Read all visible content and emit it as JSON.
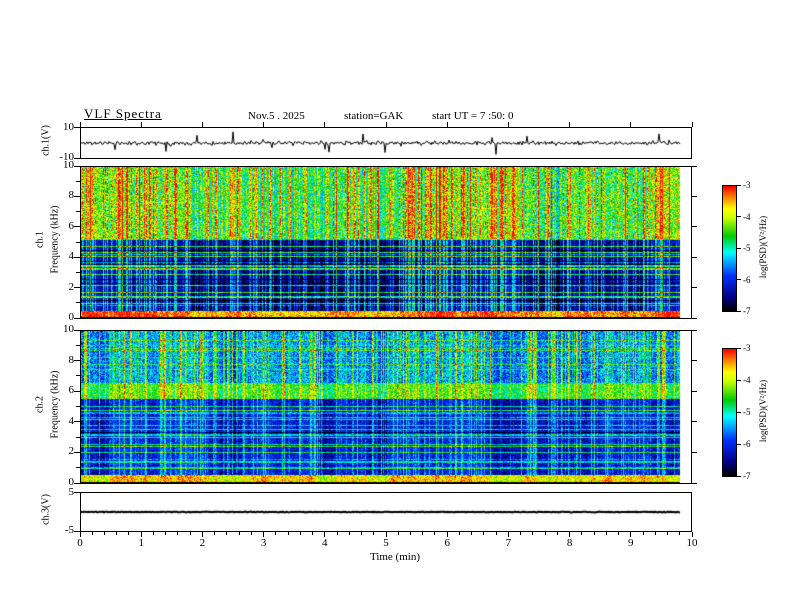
{
  "header": {
    "title": "VLF  Spectra",
    "date": "Nov.5  . 2025",
    "station": "station=GAK",
    "start_ut": "start UT =  7 :50: 0"
  },
  "x_axis": {
    "label": "Time  (min)",
    "ticks": [
      "0",
      "1",
      "2",
      "3",
      "4",
      "5",
      "6",
      "7",
      "8",
      "9",
      "10"
    ],
    "range": [
      0,
      10
    ],
    "minor_per_major": 5
  },
  "panels": {
    "wave1": {
      "ylabel": "ch.1(V)",
      "ytick_top": "10",
      "ytick_bottom": "-10"
    },
    "spec1": {
      "ylabel_line1": "ch.1",
      "ylabel_line2": "Frequency  (kHz)",
      "yticks": [
        "0",
        "2",
        "4",
        "6",
        "8",
        "10"
      ]
    },
    "spec2": {
      "ylabel_line1": "ch.2",
      "ylabel_line2": "Frequency  (kHz)",
      "yticks": [
        "0",
        "2",
        "4",
        "6",
        "8",
        "10"
      ]
    },
    "wave3": {
      "ylabel": "ch.3(V)",
      "ytick_top": "5",
      "ytick_bottom": "-5"
    }
  },
  "colorbar": {
    "label": "log(PSD)(V²/Hz)",
    "ticks": [
      "-3",
      "-4",
      "-5",
      "-6",
      "-7"
    ],
    "range": [
      -7,
      -3
    ],
    "stops": [
      [
        0,
        "#000000"
      ],
      [
        0.1,
        "#000080"
      ],
      [
        0.28,
        "#0030ff"
      ],
      [
        0.47,
        "#00ffff"
      ],
      [
        0.6,
        "#00cc00"
      ],
      [
        0.75,
        "#ccff00"
      ],
      [
        0.82,
        "#ffff00"
      ],
      [
        0.92,
        "#ff7700"
      ],
      [
        1,
        "#ff0000"
      ]
    ]
  },
  "chart_data": [
    {
      "type": "line",
      "name": "ch.1 voltage waveform",
      "ylabel": "ch.1(V)",
      "ylim": [
        -10,
        10
      ],
      "xlim": [
        0,
        10
      ],
      "data_extent_min": 9.8,
      "baseline_v": 0,
      "noise_amplitude_v": 1.3,
      "spike_amplitude_v": 8,
      "spike_probability": 0.04,
      "description": "Noisy trace centred on 0 V with many impulsive spikes (sferics) reaching about ±8 V"
    },
    {
      "type": "heatmap",
      "name": "ch.1 spectrogram",
      "xlabel": "Time (min)",
      "ylabel": "Frequency (kHz)",
      "xlim": [
        0,
        10
      ],
      "ylim": [
        0,
        10
      ],
      "zlabel": "log(PSD)(V²/Hz)",
      "zlim": [
        -7,
        -3
      ],
      "streak_prob": 0.5,
      "streak_max": 1.6,
      "vertical_streaks": "dense broadband impulsive streaks spanning 0-10 kHz throughout the record",
      "bands": [
        {
          "f_khz": [
            0,
            0.45
          ],
          "level": -3.5,
          "noise": 0.5,
          "streak_gain": 0.15,
          "description": "intense yellow-red low-frequency band"
        },
        {
          "f_khz": [
            0.45,
            5.2
          ],
          "level": -6.7,
          "noise": 0.35,
          "line_prob": 0.22,
          "line_gain": 1.5,
          "streak_gain": 0.9,
          "description": "quiet dark region crossed by narrow blue-cyan horizontal hum lines"
        },
        {
          "f_khz": [
            5.2,
            10
          ],
          "level": -4.7,
          "noise": 0.75,
          "streak_gain": 0.9,
          "description": "broadband green speckle with yellow streak columns"
        }
      ]
    },
    {
      "type": "heatmap",
      "name": "ch.2 spectrogram",
      "xlabel": "Time (min)",
      "ylabel": "Frequency (kHz)",
      "xlim": [
        0,
        10
      ],
      "ylim": [
        0,
        10
      ],
      "zlabel": "log(PSD)(V²/Hz)",
      "zlim": [
        -7,
        -3
      ],
      "streak_prob": 0.3,
      "streak_max": 1.5,
      "vertical_streaks": "narrow broadband impulsive streaks, mostly above 1 kHz",
      "bands": [
        {
          "f_khz": [
            0,
            0.5
          ],
          "level": -3.7,
          "noise": 0.5,
          "streak_gain": 0.15,
          "description": "intense low-frequency band"
        },
        {
          "f_khz": [
            0.5,
            5.5
          ],
          "level": -6.15,
          "noise": 0.4,
          "line_prob": 0.3,
          "line_gain": 1.2,
          "streak_gain": 0.55,
          "description": "blue region with many cyan horizontal lines"
        },
        {
          "f_khz": [
            5.5,
            6.6
          ],
          "level": -4.5,
          "noise": 0.55,
          "streak_gain": 0.6,
          "description": "persistent green band near 6 kHz"
        },
        {
          "f_khz": [
            6.6,
            10
          ],
          "level": -5.5,
          "noise": 0.6,
          "line_prob": 0.12,
          "line_gain": 0.8,
          "streak_gain": 0.95,
          "description": "blue-cyan noise with vertical streaks"
        }
      ]
    },
    {
      "type": "line",
      "name": "ch.3 voltage waveform",
      "ylabel": "ch.3(V)",
      "ylim": [
        -5,
        5
      ],
      "xlim": [
        0,
        10
      ],
      "data_extent_min": 9.8,
      "baseline_v": 0,
      "noise_amplitude_v": 0.1,
      "spike_amplitude_v": 0,
      "spike_probability": 0,
      "description": "Essentially flat trace at 0 V for the whole record"
    }
  ]
}
